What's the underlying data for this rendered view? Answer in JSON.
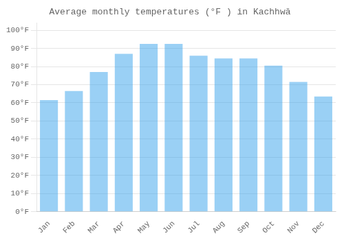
{
  "chart_data": {
    "type": "bar",
    "title": "Average monthly temperatures (°F ) in Kachhwā",
    "categories": [
      "Jan",
      "Feb",
      "Mar",
      "Apr",
      "May",
      "Jun",
      "Jul",
      "Aug",
      "Sep",
      "Oct",
      "Nov",
      "Dec"
    ],
    "values": [
      61.5,
      66.5,
      77.0,
      87.0,
      92.5,
      92.5,
      86.0,
      84.5,
      84.5,
      80.5,
      71.5,
      63.5
    ],
    "ylim": [
      0,
      104
    ],
    "yticks": [
      {
        "value": 0,
        "label": "0°F"
      },
      {
        "value": 10,
        "label": "10°F"
      },
      {
        "value": 20,
        "label": "20°F"
      },
      {
        "value": 30,
        "label": "30°F"
      },
      {
        "value": 40,
        "label": "40°F"
      },
      {
        "value": 50,
        "label": "50°F"
      },
      {
        "value": 60,
        "label": "60°F"
      },
      {
        "value": 70,
        "label": "70°F"
      },
      {
        "value": 80,
        "label": "80°F"
      },
      {
        "value": 90,
        "label": "90°F"
      },
      {
        "value": 100,
        "label": "100°F"
      }
    ],
    "grid": true
  }
}
